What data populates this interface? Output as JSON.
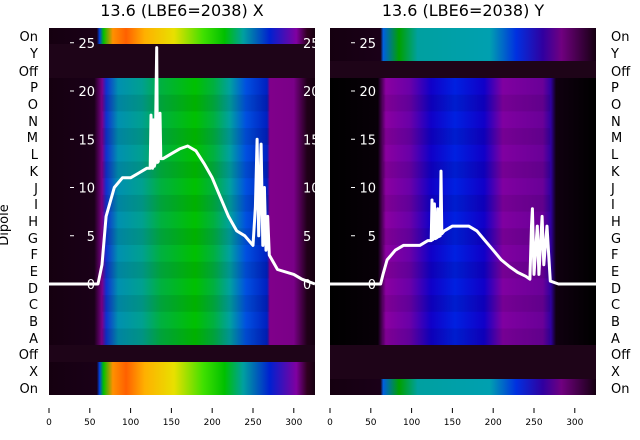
{
  "chart_data": [
    {
      "type": "heatmap",
      "title": "13.6 (LBE6=2038) X",
      "ylabel": "Dipole",
      "row_labels": [
        "On",
        "Y",
        "Off",
        "P",
        "O",
        "N",
        "M",
        "L",
        "K",
        "J",
        "I",
        "H",
        "G",
        "F",
        "E",
        "D",
        "C",
        "B",
        "A",
        "Off",
        "X",
        "On"
      ],
      "xticks": [
        0,
        50,
        100,
        150,
        200,
        250,
        300
      ],
      "yticks": [
        0,
        5,
        10,
        15,
        20,
        25
      ],
      "xlim": [
        0,
        326
      ],
      "ylim": [
        -11.5,
        26.5
      ],
      "line": {
        "color": "#ffffff",
        "x": [
          0,
          60,
          65,
          70,
          80,
          90,
          100,
          110,
          120,
          124,
          125,
          127,
          128,
          129,
          130,
          132,
          133,
          134,
          136,
          137,
          140,
          150,
          160,
          170,
          180,
          190,
          200,
          210,
          220,
          230,
          240,
          245,
          250,
          253,
          255,
          257,
          260,
          262,
          264,
          266,
          268,
          270,
          280,
          300,
          310,
          326
        ],
        "y": [
          0,
          0,
          2,
          7,
          10,
          11,
          11,
          11.5,
          12,
          12,
          17.5,
          12,
          17,
          12.2,
          12.5,
          24.5,
          12.6,
          12.7,
          17.7,
          13,
          13,
          13.5,
          14,
          14.3,
          13.8,
          12.5,
          11,
          9,
          7,
          5.5,
          5,
          4.5,
          4,
          8,
          15,
          5,
          14.5,
          4,
          10,
          3.5,
          7,
          3,
          1.5,
          1,
          0.5,
          0
        ]
      },
      "colors": {
        "cmap": "nipy_spectral"
      }
    },
    {
      "type": "heatmap",
      "title": "13.6 (LBE6=2038) Y",
      "row_labels": [
        "On",
        "Y",
        "Off",
        "P",
        "O",
        "N",
        "M",
        "L",
        "K",
        "J",
        "I",
        "H",
        "G",
        "F",
        "E",
        "D",
        "C",
        "B",
        "A",
        "Off",
        "X",
        "On"
      ],
      "xticks": [
        0,
        50,
        100,
        150,
        200,
        250,
        300
      ],
      "yticks": [
        0,
        5,
        10,
        15,
        20,
        25
      ],
      "xlim": [
        0,
        326
      ],
      "ylim": [
        -11.5,
        26.5
      ],
      "line": {
        "color": "#ffffff",
        "x": [
          0,
          62,
          65,
          70,
          80,
          90,
          100,
          110,
          120,
          124,
          125,
          126,
          128,
          129,
          131,
          132,
          133,
          135,
          136,
          137,
          140,
          150,
          160,
          170,
          180,
          190,
          200,
          210,
          220,
          230,
          240,
          245,
          247,
          248,
          250,
          254,
          256,
          260,
          262,
          266,
          268,
          270,
          280,
          326
        ],
        "y": [
          0,
          0,
          1,
          2.5,
          3.5,
          4,
          4,
          4,
          4.5,
          4.5,
          8.7,
          4.6,
          8.3,
          4.7,
          4.8,
          7.8,
          4.9,
          5,
          11.7,
          5.2,
          5.5,
          6,
          6,
          6,
          5.5,
          4.5,
          3.5,
          2.5,
          1.8,
          1.2,
          0.8,
          0.5,
          6,
          7.8,
          1,
          6,
          1,
          7,
          2,
          6,
          3,
          0.3,
          0,
          0
        ]
      }
    }
  ]
}
